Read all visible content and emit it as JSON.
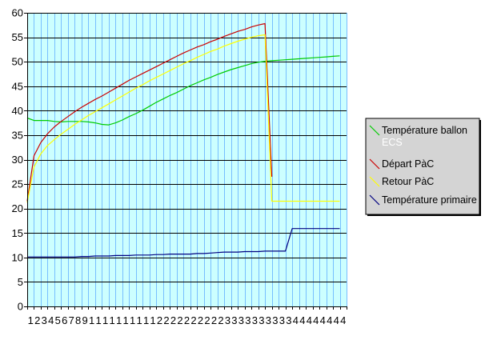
{
  "chart_data": {
    "type": "line",
    "title": "",
    "xlabel": "",
    "ylabel": "",
    "ylim": [
      0,
      60
    ],
    "y_ticks": [
      0,
      5,
      10,
      15,
      20,
      25,
      30,
      35,
      40,
      45,
      50,
      55,
      60
    ],
    "x_tick_labels": [
      "1",
      "2",
      "3",
      "4",
      "5",
      "6",
      "7",
      "8",
      "9",
      "1",
      "1",
      "1",
      "1",
      "1",
      "1",
      "1",
      "1",
      "1",
      "1",
      "2",
      "2",
      "2",
      "2",
      "2",
      "2",
      "2",
      "2",
      "2",
      "2",
      "3",
      "3",
      "3",
      "3",
      "3",
      "3",
      "3",
      "3",
      "3",
      "3",
      "4",
      "4",
      "4",
      "4",
      "4",
      "4",
      "4",
      "4"
    ],
    "x_count": 47,
    "grid": true,
    "plot_background": "#ccffff",
    "gridline_color": "#77bfff",
    "legend_position": "right",
    "series": [
      {
        "name": "Température ballon ECS",
        "color": "#00cc00",
        "values": [
          38.5,
          38.0,
          38.0,
          38.0,
          37.8,
          37.7,
          37.8,
          37.8,
          37.8,
          37.7,
          37.5,
          37.2,
          37.1,
          37.5,
          38.1,
          38.8,
          39.4,
          40.1,
          40.9,
          41.7,
          42.4,
          43.1,
          43.7,
          44.4,
          45.1,
          45.7,
          46.3,
          46.8,
          47.4,
          47.9,
          48.4,
          48.8,
          49.2,
          49.6,
          49.9,
          50.1,
          50.2,
          50.3,
          50.4,
          50.5,
          50.6,
          50.7,
          50.8,
          50.9,
          51.0,
          51.1,
          51.2
        ]
      },
      {
        "name": "Départ PàC",
        "color": "#cc0000",
        "values": [
          21.5,
          30.8,
          33.5,
          35.3,
          36.7,
          37.8,
          38.8,
          39.8,
          40.7,
          41.5,
          42.3,
          43.0,
          43.8,
          44.6,
          45.4,
          46.2,
          46.9,
          47.6,
          48.3,
          49.0,
          49.7,
          50.4,
          51.1,
          51.8,
          52.4,
          53.0,
          53.5,
          54.1,
          54.6,
          55.2,
          55.7,
          56.2,
          56.6,
          57.1,
          57.5,
          57.8,
          26.5,
          null,
          null,
          null,
          null,
          null,
          null,
          null,
          null,
          null,
          null
        ]
      },
      {
        "name": "Retour PàC",
        "color": "#ffff00",
        "values": [
          21.2,
          28.5,
          31.2,
          32.9,
          34.1,
          35.2,
          36.2,
          37.2,
          38.1,
          39.0,
          39.8,
          40.6,
          41.4,
          42.2,
          43.0,
          43.8,
          44.6,
          45.3,
          46.1,
          46.8,
          47.5,
          48.2,
          48.9,
          49.6,
          50.2,
          50.9,
          51.5,
          52.1,
          52.6,
          53.2,
          53.7,
          54.2,
          54.6,
          55.0,
          55.3,
          55.5,
          21.5,
          21.5,
          21.5,
          21.5,
          21.5,
          21.5,
          21.5,
          21.5,
          21.5,
          21.5,
          21.5
        ]
      },
      {
        "name": "Température primaire",
        "color": "#000080",
        "values": [
          10.1,
          10.1,
          10.1,
          10.1,
          10.1,
          10.1,
          10.1,
          10.1,
          10.2,
          10.2,
          10.3,
          10.3,
          10.3,
          10.4,
          10.4,
          10.4,
          10.5,
          10.5,
          10.5,
          10.6,
          10.6,
          10.7,
          10.7,
          10.7,
          10.7,
          10.8,
          10.8,
          10.9,
          11.0,
          11.1,
          11.1,
          11.1,
          11.2,
          11.2,
          11.2,
          11.3,
          11.3,
          11.3,
          11.3,
          15.9,
          15.9,
          15.9,
          15.9,
          15.9,
          15.9,
          15.9,
          15.9
        ]
      }
    ]
  }
}
